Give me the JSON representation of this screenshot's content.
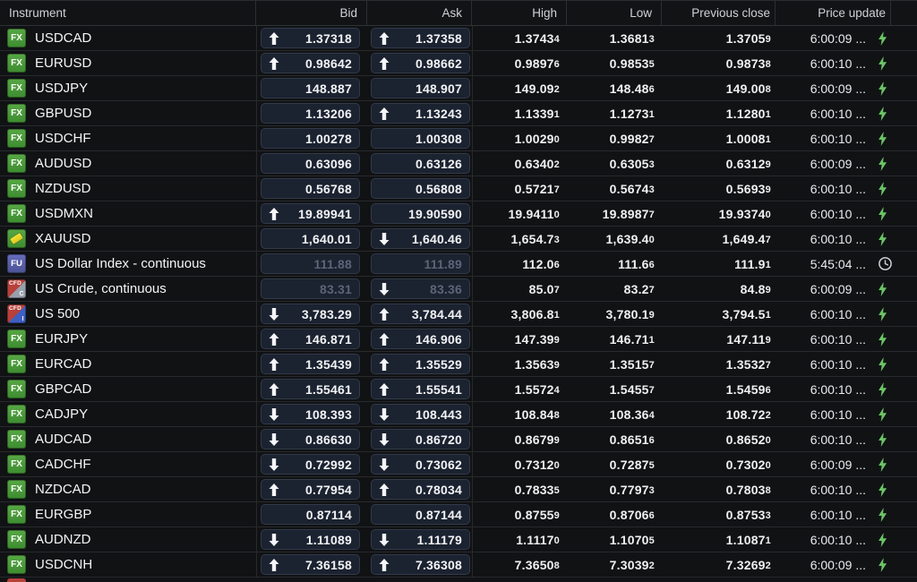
{
  "table": {
    "columns": [
      {
        "key": "instrument",
        "label": "Instrument"
      },
      {
        "key": "bid",
        "label": "Bid"
      },
      {
        "key": "ask",
        "label": "Ask"
      },
      {
        "key": "high",
        "label": "High"
      },
      {
        "key": "low",
        "label": "Low"
      },
      {
        "key": "prev_close",
        "label": "Previous close"
      },
      {
        "key": "price_update",
        "label": "Price update"
      }
    ],
    "rows": [
      {
        "name": "USDCAD",
        "badge": "fx",
        "bid_dir": "up",
        "bid": "1.37318",
        "ask_dir": "up",
        "ask": "1.37358",
        "high": "1.37434",
        "low": "1.36813",
        "prev": "1.37059",
        "time": "6:00:09 ...",
        "status": "live",
        "dim": false
      },
      {
        "name": "EURUSD",
        "badge": "fx",
        "bid_dir": "up",
        "bid": "0.98642",
        "ask_dir": "up",
        "ask": "0.98662",
        "high": "0.98976",
        "low": "0.98535",
        "prev": "0.98738",
        "time": "6:00:10 ...",
        "status": "live",
        "dim": false
      },
      {
        "name": "USDJPY",
        "badge": "fx",
        "bid_dir": "",
        "bid": "148.887",
        "ask_dir": "",
        "ask": "148.907",
        "high": "149.092",
        "low": "148.486",
        "prev": "149.008",
        "time": "6:00:09 ...",
        "status": "live",
        "dim": false
      },
      {
        "name": "GBPUSD",
        "badge": "fx",
        "bid_dir": "",
        "bid": "1.13206",
        "ask_dir": "up",
        "ask": "1.13243",
        "high": "1.13391",
        "low": "1.12731",
        "prev": "1.12801",
        "time": "6:00:10 ...",
        "status": "live",
        "dim": false
      },
      {
        "name": "USDCHF",
        "badge": "fx",
        "bid_dir": "",
        "bid": "1.00278",
        "ask_dir": "",
        "ask": "1.00308",
        "high": "1.00290",
        "low": "0.99827",
        "prev": "1.00081",
        "time": "6:00:10 ...",
        "status": "live",
        "dim": false
      },
      {
        "name": "AUDUSD",
        "badge": "fx",
        "bid_dir": "",
        "bid": "0.63096",
        "ask_dir": "",
        "ask": "0.63126",
        "high": "0.63402",
        "low": "0.63053",
        "prev": "0.63129",
        "time": "6:00:09 ...",
        "status": "live",
        "dim": false
      },
      {
        "name": "NZDUSD",
        "badge": "fx",
        "bid_dir": "",
        "bid": "0.56768",
        "ask_dir": "",
        "ask": "0.56808",
        "high": "0.57217",
        "low": "0.56743",
        "prev": "0.56939",
        "time": "6:00:10 ...",
        "status": "live",
        "dim": false
      },
      {
        "name": "USDMXN",
        "badge": "fx",
        "bid_dir": "up",
        "bid": "19.89941",
        "ask_dir": "",
        "ask": "19.90590",
        "high": "19.94110",
        "low": "19.89877",
        "prev": "19.93740",
        "time": "6:00:10 ...",
        "status": "live",
        "dim": false
      },
      {
        "name": "XAUUSD",
        "badge": "gold",
        "bid_dir": "",
        "bid": "1,640.01",
        "ask_dir": "down",
        "ask": "1,640.46",
        "high": "1,654.73",
        "low": "1,639.40",
        "prev": "1,649.47",
        "time": "6:00:10 ...",
        "status": "live",
        "dim": false
      },
      {
        "name": "US Dollar Index - continuous",
        "badge": "fu",
        "bid_dir": "",
        "bid": "111.88",
        "ask_dir": "",
        "ask": "111.89",
        "high": "112.06",
        "low": "111.66",
        "prev": "111.91",
        "time": "5:45:04 ...",
        "status": "delayed",
        "dim": true
      },
      {
        "name": "US Crude, continuous",
        "badge": "cfdc",
        "bid_dir": "",
        "bid": "83.31",
        "ask_dir": "down",
        "ask": "83.36",
        "high": "85.07",
        "low": "83.27",
        "prev": "84.89",
        "time": "6:00:09 ...",
        "status": "live",
        "dim": true
      },
      {
        "name": "US 500",
        "badge": "cfdi",
        "bid_dir": "down",
        "bid": "3,783.29",
        "ask_dir": "up",
        "ask": "3,784.44",
        "high": "3,806.81",
        "low": "3,780.19",
        "prev": "3,794.51",
        "time": "6:00:10 ...",
        "status": "live",
        "dim": false
      },
      {
        "name": "EURJPY",
        "badge": "fx",
        "bid_dir": "up",
        "bid": "146.871",
        "ask_dir": "up",
        "ask": "146.906",
        "high": "147.399",
        "low": "146.711",
        "prev": "147.119",
        "time": "6:00:10 ...",
        "status": "live",
        "dim": false
      },
      {
        "name": "EURCAD",
        "badge": "fx",
        "bid_dir": "up",
        "bid": "1.35439",
        "ask_dir": "up",
        "ask": "1.35529",
        "high": "1.35639",
        "low": "1.35157",
        "prev": "1.35327",
        "time": "6:00:10 ...",
        "status": "live",
        "dim": false
      },
      {
        "name": "GBPCAD",
        "badge": "fx",
        "bid_dir": "up",
        "bid": "1.55461",
        "ask_dir": "up",
        "ask": "1.55541",
        "high": "1.55724",
        "low": "1.54557",
        "prev": "1.54596",
        "time": "6:00:10 ...",
        "status": "live",
        "dim": false
      },
      {
        "name": "CADJPY",
        "badge": "fx",
        "bid_dir": "down",
        "bid": "108.393",
        "ask_dir": "down",
        "ask": "108.443",
        "high": "108.848",
        "low": "108.364",
        "prev": "108.722",
        "time": "6:00:10 ...",
        "status": "live",
        "dim": false
      },
      {
        "name": "AUDCAD",
        "badge": "fx",
        "bid_dir": "down",
        "bid": "0.86630",
        "ask_dir": "down",
        "ask": "0.86720",
        "high": "0.86799",
        "low": "0.86516",
        "prev": "0.86520",
        "time": "6:00:10 ...",
        "status": "live",
        "dim": false
      },
      {
        "name": "CADCHF",
        "badge": "fx",
        "bid_dir": "down",
        "bid": "0.72992",
        "ask_dir": "down",
        "ask": "0.73062",
        "high": "0.73120",
        "low": "0.72875",
        "prev": "0.73020",
        "time": "6:00:09 ...",
        "status": "live",
        "dim": false
      },
      {
        "name": "NZDCAD",
        "badge": "fx",
        "bid_dir": "up",
        "bid": "0.77954",
        "ask_dir": "up",
        "ask": "0.78034",
        "high": "0.78335",
        "low": "0.77973",
        "prev": "0.78038",
        "time": "6:00:10 ...",
        "status": "live",
        "dim": false
      },
      {
        "name": "EURGBP",
        "badge": "fx",
        "bid_dir": "",
        "bid": "0.87114",
        "ask_dir": "",
        "ask": "0.87144",
        "high": "0.87559",
        "low": "0.87066",
        "prev": "0.87533",
        "time": "6:00:10 ...",
        "status": "live",
        "dim": false
      },
      {
        "name": "AUDNZD",
        "badge": "fx",
        "bid_dir": "down",
        "bid": "1.11089",
        "ask_dir": "down",
        "ask": "1.11179",
        "high": "1.11170",
        "low": "1.10705",
        "prev": "1.10871",
        "time": "6:00:10 ...",
        "status": "live",
        "dim": false
      },
      {
        "name": "USDCNH",
        "badge": "fx",
        "bid_dir": "up",
        "bid": "7.36158",
        "ask_dir": "up",
        "ask": "7.36308",
        "high": "7.36508",
        "low": "7.30392",
        "prev": "7.32692",
        "time": "6:00:09 ...",
        "status": "live",
        "dim": false
      }
    ]
  },
  "badges": {
    "fx": {
      "label": "FX"
    },
    "gold": {
      "label": ""
    },
    "fu": {
      "label": "FU"
    },
    "cfdc": {
      "top": "CFD",
      "sub": "C"
    },
    "cfdi": {
      "top": "CFD",
      "sub": "I"
    }
  },
  "icons": {
    "up": "arrow-up-icon",
    "down": "arrow-down-icon",
    "live": "lightning-icon",
    "delayed": "clock-icon"
  },
  "colors": {
    "fx_badge_top": "#57a844",
    "fx_badge_bottom": "#3e8c31",
    "fu_badge": "#4c5293",
    "cfd_red": "#b8413a",
    "cfd_gray": "#98a0ab",
    "cfd_blue": "#3e5fc1",
    "gold": "#dcc71f",
    "live_bolt": "#6cc465",
    "delayed_clock": "#cdd0d5",
    "dimmed_text": "#5c6577"
  }
}
